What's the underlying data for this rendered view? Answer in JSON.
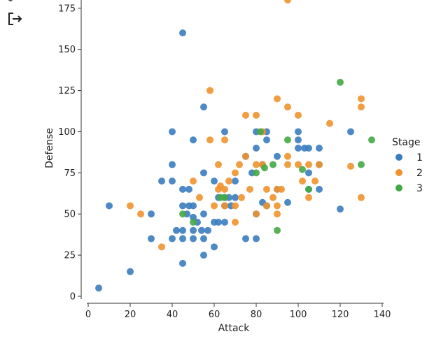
{
  "toolbar": {
    "export_icon": "export-icon"
  },
  "chart_data": {
    "type": "scatter",
    "xlabel": "Attack",
    "ylabel": "Defense",
    "xlim": [
      0,
      140
    ],
    "ylim": [
      0,
      180
    ],
    "xticks": [
      0,
      20,
      40,
      60,
      80,
      100,
      120,
      140
    ],
    "yticks": [
      0,
      25,
      50,
      75,
      100,
      125,
      150,
      175
    ],
    "grid": false,
    "legend": {
      "title": "Stage",
      "placement": "right"
    },
    "series": [
      {
        "name": "1",
        "color": "#3a7dbf",
        "points": [
          [
            5,
            5
          ],
          [
            10,
            55
          ],
          [
            20,
            15
          ],
          [
            30,
            35
          ],
          [
            30,
            50
          ],
          [
            35,
            70
          ],
          [
            40,
            35
          ],
          [
            40,
            70
          ],
          [
            40,
            80
          ],
          [
            40,
            100
          ],
          [
            42,
            40
          ],
          [
            45,
            20
          ],
          [
            45,
            35
          ],
          [
            45,
            40
          ],
          [
            45,
            55
          ],
          [
            45,
            65
          ],
          [
            45,
            160
          ],
          [
            47,
            50
          ],
          [
            48,
            65
          ],
          [
            48,
            55
          ],
          [
            50,
            35
          ],
          [
            50,
            40
          ],
          [
            50,
            48
          ],
          [
            50,
            55
          ],
          [
            50,
            95
          ],
          [
            52,
            45
          ],
          [
            54,
            40
          ],
          [
            55,
            25
          ],
          [
            55,
            35
          ],
          [
            55,
            50
          ],
          [
            55,
            75
          ],
          [
            55,
            115
          ],
          [
            57,
            40
          ],
          [
            60,
            30
          ],
          [
            60,
            45
          ],
          [
            60,
            70
          ],
          [
            62,
            45
          ],
          [
            62,
            60
          ],
          [
            65,
            45
          ],
          [
            65,
            55
          ],
          [
            65,
            60
          ],
          [
            65,
            100
          ],
          [
            67,
            60
          ],
          [
            68,
            55
          ],
          [
            70,
            60
          ],
          [
            70,
            70
          ],
          [
            75,
            35
          ],
          [
            75,
            85
          ],
          [
            78,
            75
          ],
          [
            80,
            35
          ],
          [
            80,
            50
          ],
          [
            80,
            90
          ],
          [
            80,
            100
          ],
          [
            83,
            80
          ],
          [
            83,
            57
          ],
          [
            85,
            55
          ],
          [
            85,
            100
          ],
          [
            85,
            95
          ],
          [
            90,
            65
          ],
          [
            90,
            85
          ],
          [
            95,
            57
          ],
          [
            100,
            100
          ],
          [
            100,
            90
          ],
          [
            100,
            95
          ],
          [
            103,
            90
          ],
          [
            105,
            65
          ],
          [
            105,
            75
          ],
          [
            105,
            90
          ],
          [
            110,
            65
          ],
          [
            110,
            80
          ],
          [
            110,
            90
          ],
          [
            120,
            53
          ],
          [
            125,
            100
          ]
        ]
      },
      {
        "name": "2",
        "color": "#f0922e",
        "points": [
          [
            20,
            55
          ],
          [
            25,
            50
          ],
          [
            35,
            30
          ],
          [
            50,
            70
          ],
          [
            53,
            60
          ],
          [
            58,
            95
          ],
          [
            58,
            125
          ],
          [
            60,
            55
          ],
          [
            62,
            65
          ],
          [
            62,
            80
          ],
          [
            63,
            67
          ],
          [
            65,
            55
          ],
          [
            65,
            65
          ],
          [
            65,
            95
          ],
          [
            67,
            70
          ],
          [
            70,
            45
          ],
          [
            70,
            55
          ],
          [
            70,
            75
          ],
          [
            72,
            80
          ],
          [
            73,
            60
          ],
          [
            75,
            85
          ],
          [
            75,
            110
          ],
          [
            77,
            65
          ],
          [
            80,
            50
          ],
          [
            80,
            80
          ],
          [
            80,
            110
          ],
          [
            83,
            100
          ],
          [
            83,
            80
          ],
          [
            85,
            55
          ],
          [
            85,
            65
          ],
          [
            88,
            60
          ],
          [
            90,
            50
          ],
          [
            90,
            55
          ],
          [
            90,
            65
          ],
          [
            90,
            120
          ],
          [
            92,
            65
          ],
          [
            95,
            80
          ],
          [
            95,
            85
          ],
          [
            95,
            115
          ],
          [
            95,
            180
          ],
          [
            100,
            80
          ],
          [
            100,
            110
          ],
          [
            102,
            70
          ],
          [
            105,
            60
          ],
          [
            105,
            80
          ],
          [
            108,
            70
          ],
          [
            110,
            80
          ],
          [
            115,
            105
          ],
          [
            125,
            79
          ],
          [
            130,
            60
          ],
          [
            130,
            115
          ],
          [
            130,
            120
          ]
        ]
      },
      {
        "name": "3",
        "color": "#45a845",
        "points": [
          [
            45,
            50
          ],
          [
            50,
            45
          ],
          [
            63,
            60
          ],
          [
            65,
            60
          ],
          [
            80,
            75
          ],
          [
            82,
            100
          ],
          [
            84,
            78
          ],
          [
            88,
            80
          ],
          [
            90,
            40
          ],
          [
            95,
            95
          ],
          [
            102,
            77
          ],
          [
            105,
            65
          ],
          [
            120,
            130
          ],
          [
            130,
            80
          ],
          [
            135,
            95
          ]
        ]
      }
    ]
  }
}
